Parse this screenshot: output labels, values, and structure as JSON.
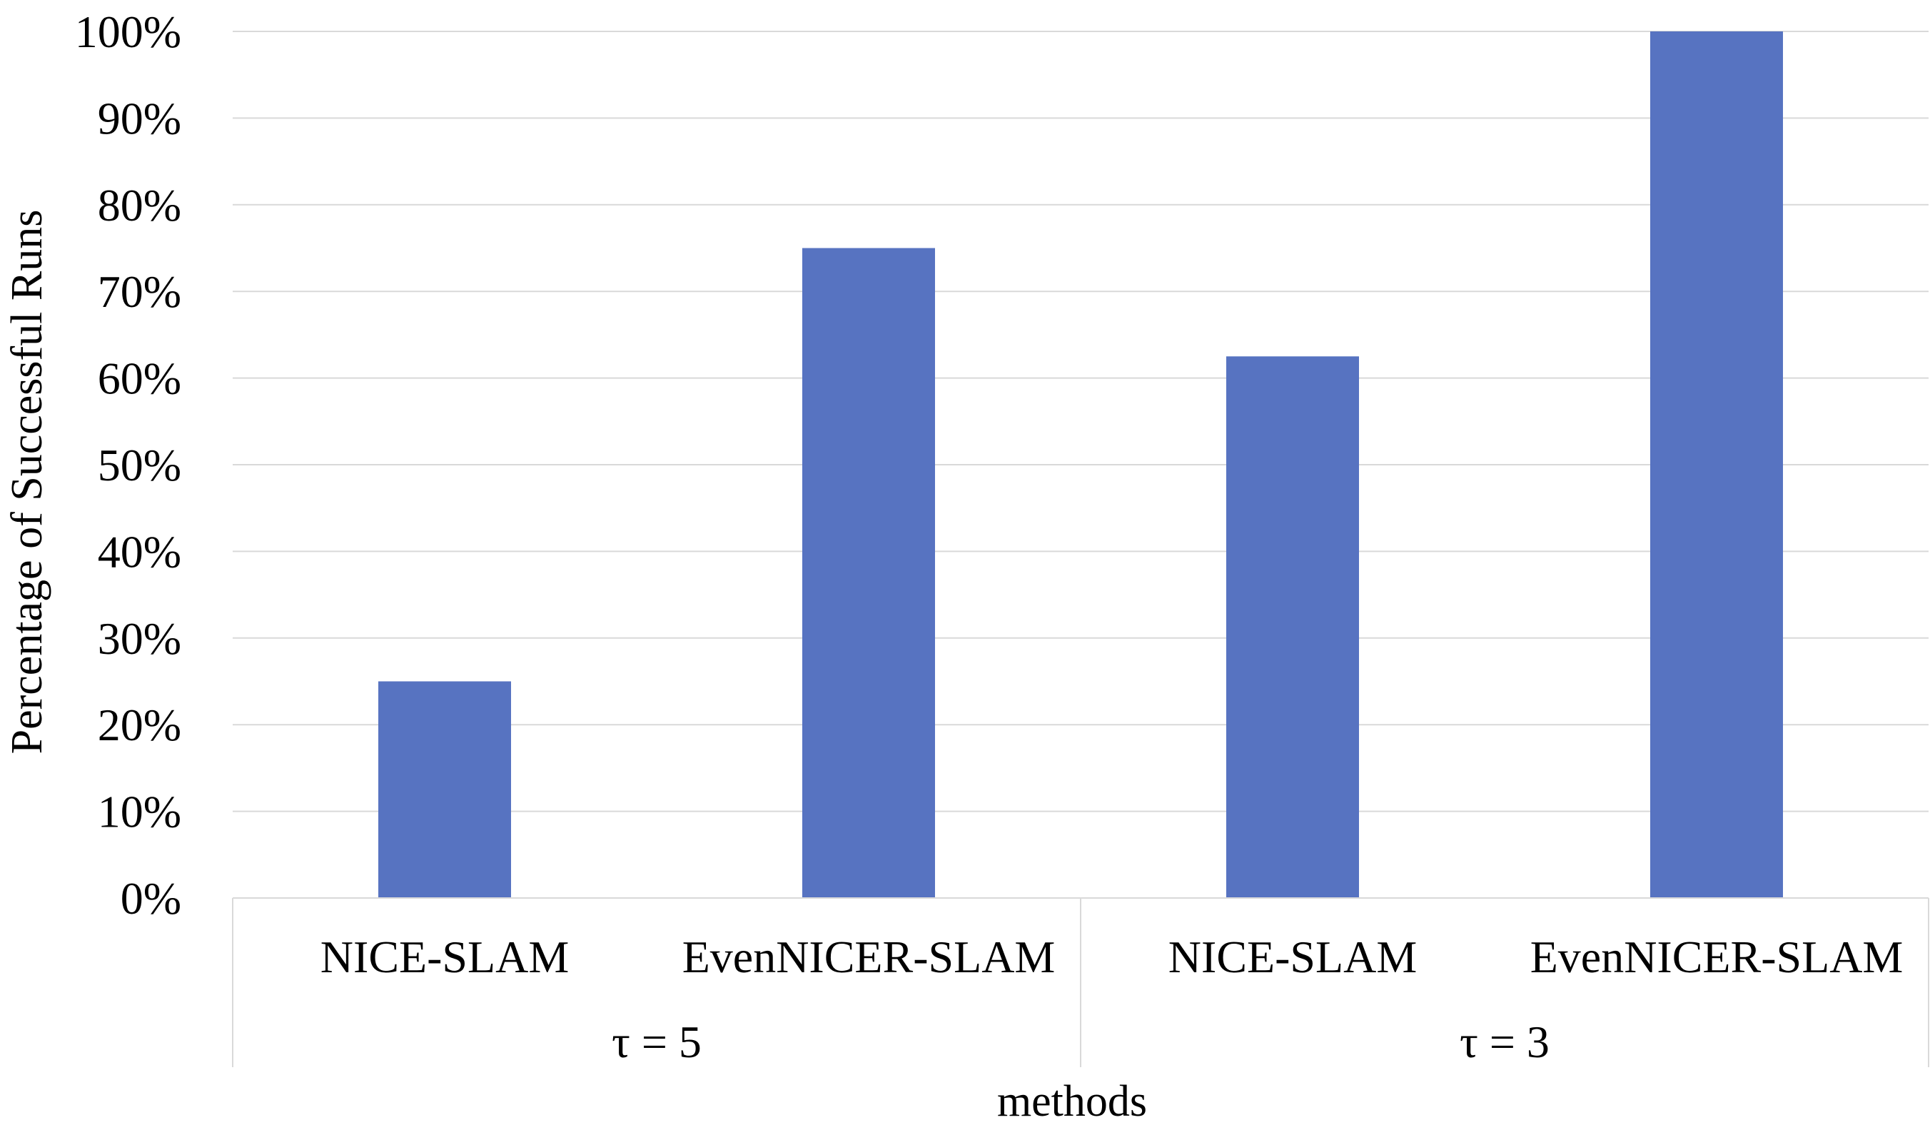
{
  "chart_data": {
    "type": "bar",
    "title": "",
    "xlabel": "methods",
    "ylabel": "Percentage of Successful Runs",
    "ylim": [
      0,
      100
    ],
    "yticks": [
      "0%",
      "10%",
      "20%",
      "30%",
      "40%",
      "50%",
      "60%",
      "70%",
      "80%",
      "90%",
      "100%"
    ],
    "categories": [
      "NICE-SLAM",
      "EvenNICER-SLAM",
      "NICE-SLAM",
      "EvenNICER-SLAM"
    ],
    "groups": [
      {
        "label": "τ = 5",
        "categories": [
          "NICE-SLAM",
          "EvenNICER-SLAM"
        ]
      },
      {
        "label": "τ = 3",
        "categories": [
          "NICE-SLAM",
          "EvenNICER-SLAM"
        ]
      }
    ],
    "values": [
      25,
      75,
      62.5,
      100
    ],
    "grid": true,
    "legend": "none",
    "colors": {
      "bar": "#5773C1",
      "grid": "#d9d9d9",
      "axis": "#d9d9d9"
    }
  }
}
